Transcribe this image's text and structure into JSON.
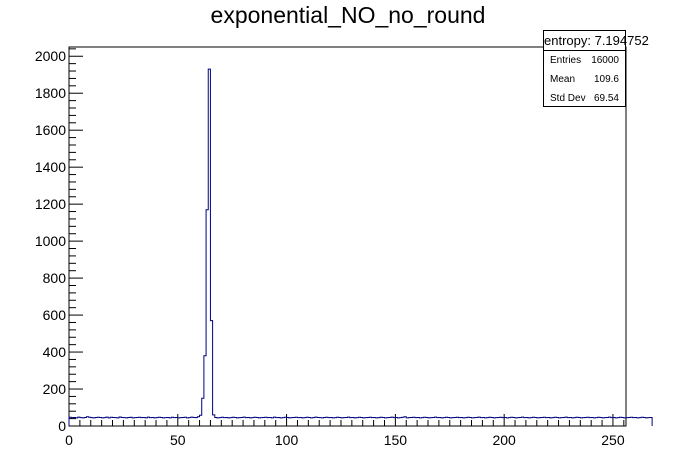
{
  "chart_data": {
    "type": "bar",
    "title": "exponential_NO_no_round",
    "xlabel": "",
    "ylabel": "",
    "xlim": [
      0,
      256
    ],
    "ylim": [
      0,
      2050
    ],
    "x_ticks": [
      0,
      50,
      100,
      150,
      200,
      250
    ],
    "y_ticks": [
      0,
      200,
      400,
      600,
      800,
      1000,
      1200,
      1400,
      1600,
      1800,
      2000
    ],
    "bin_width": 1,
    "series": [
      {
        "values": [
          47,
          45,
          46,
          44,
          48,
          45,
          44,
          46,
          50,
          47,
          45,
          44,
          46,
          47,
          46,
          44,
          45,
          48,
          44,
          47,
          46,
          45,
          44,
          49,
          46,
          45,
          44,
          46,
          47,
          44,
          45,
          46,
          47,
          45,
          46,
          44,
          48,
          45,
          46,
          44,
          45,
          47,
          46,
          44,
          45,
          46,
          44,
          47,
          45,
          46,
          44,
          45,
          46,
          47,
          44,
          45,
          48,
          46,
          45,
          50,
          58,
          150,
          380,
          1170,
          1930,
          570,
          60,
          46,
          44,
          45,
          47,
          45,
          46,
          44,
          45,
          47,
          46,
          44,
          45,
          46,
          48,
          45,
          46,
          44,
          45,
          47,
          46,
          44,
          45,
          46,
          47,
          45,
          46,
          44,
          48,
          45,
          46,
          44,
          45,
          47,
          46,
          44,
          45,
          46,
          47,
          45,
          46,
          44,
          45,
          47,
          46,
          44,
          45,
          48,
          46,
          45,
          44,
          46,
          47,
          45,
          46,
          44,
          45,
          47,
          46,
          44,
          45,
          46,
          48,
          45,
          46,
          44,
          45,
          47,
          46,
          44,
          45,
          46,
          47,
          45,
          46,
          44,
          45,
          47,
          46,
          44,
          45,
          46,
          48,
          45,
          46,
          44,
          45,
          47,
          50,
          44,
          45,
          46,
          47,
          45,
          46,
          44,
          45,
          47,
          46,
          44,
          45,
          46,
          48,
          45,
          46,
          44,
          45,
          47,
          46,
          44,
          45,
          46,
          47,
          45,
          46,
          44,
          45,
          47,
          46,
          44,
          45,
          46,
          48,
          45,
          46,
          44,
          45,
          47,
          46,
          44,
          45,
          46,
          47,
          45,
          46,
          44,
          45,
          47,
          46,
          44,
          45,
          46,
          48,
          45,
          46,
          44,
          45,
          47,
          46,
          44,
          45,
          46,
          47,
          45,
          46,
          44,
          45,
          47,
          46,
          44,
          45,
          46,
          48,
          45,
          46,
          44,
          45,
          47,
          46,
          44,
          45,
          46,
          47,
          45,
          46,
          44,
          45,
          47,
          46,
          44,
          45,
          46,
          48,
          45,
          46,
          44,
          45,
          47,
          46,
          44,
          45,
          46,
          47,
          45,
          46,
          44,
          45,
          47,
          46,
          44,
          45,
          46
        ]
      }
    ],
    "colors": {
      "line": "#000080",
      "axis": "#000000"
    },
    "grid": false,
    "legend": "top-right"
  },
  "stats_box": {
    "title": "entropy: 7.194752",
    "rows": [
      {
        "label": "Entries",
        "value": "16000"
      },
      {
        "label": "Mean",
        "value": "109.6"
      },
      {
        "label": "Std Dev",
        "value": "69.54"
      }
    ]
  }
}
